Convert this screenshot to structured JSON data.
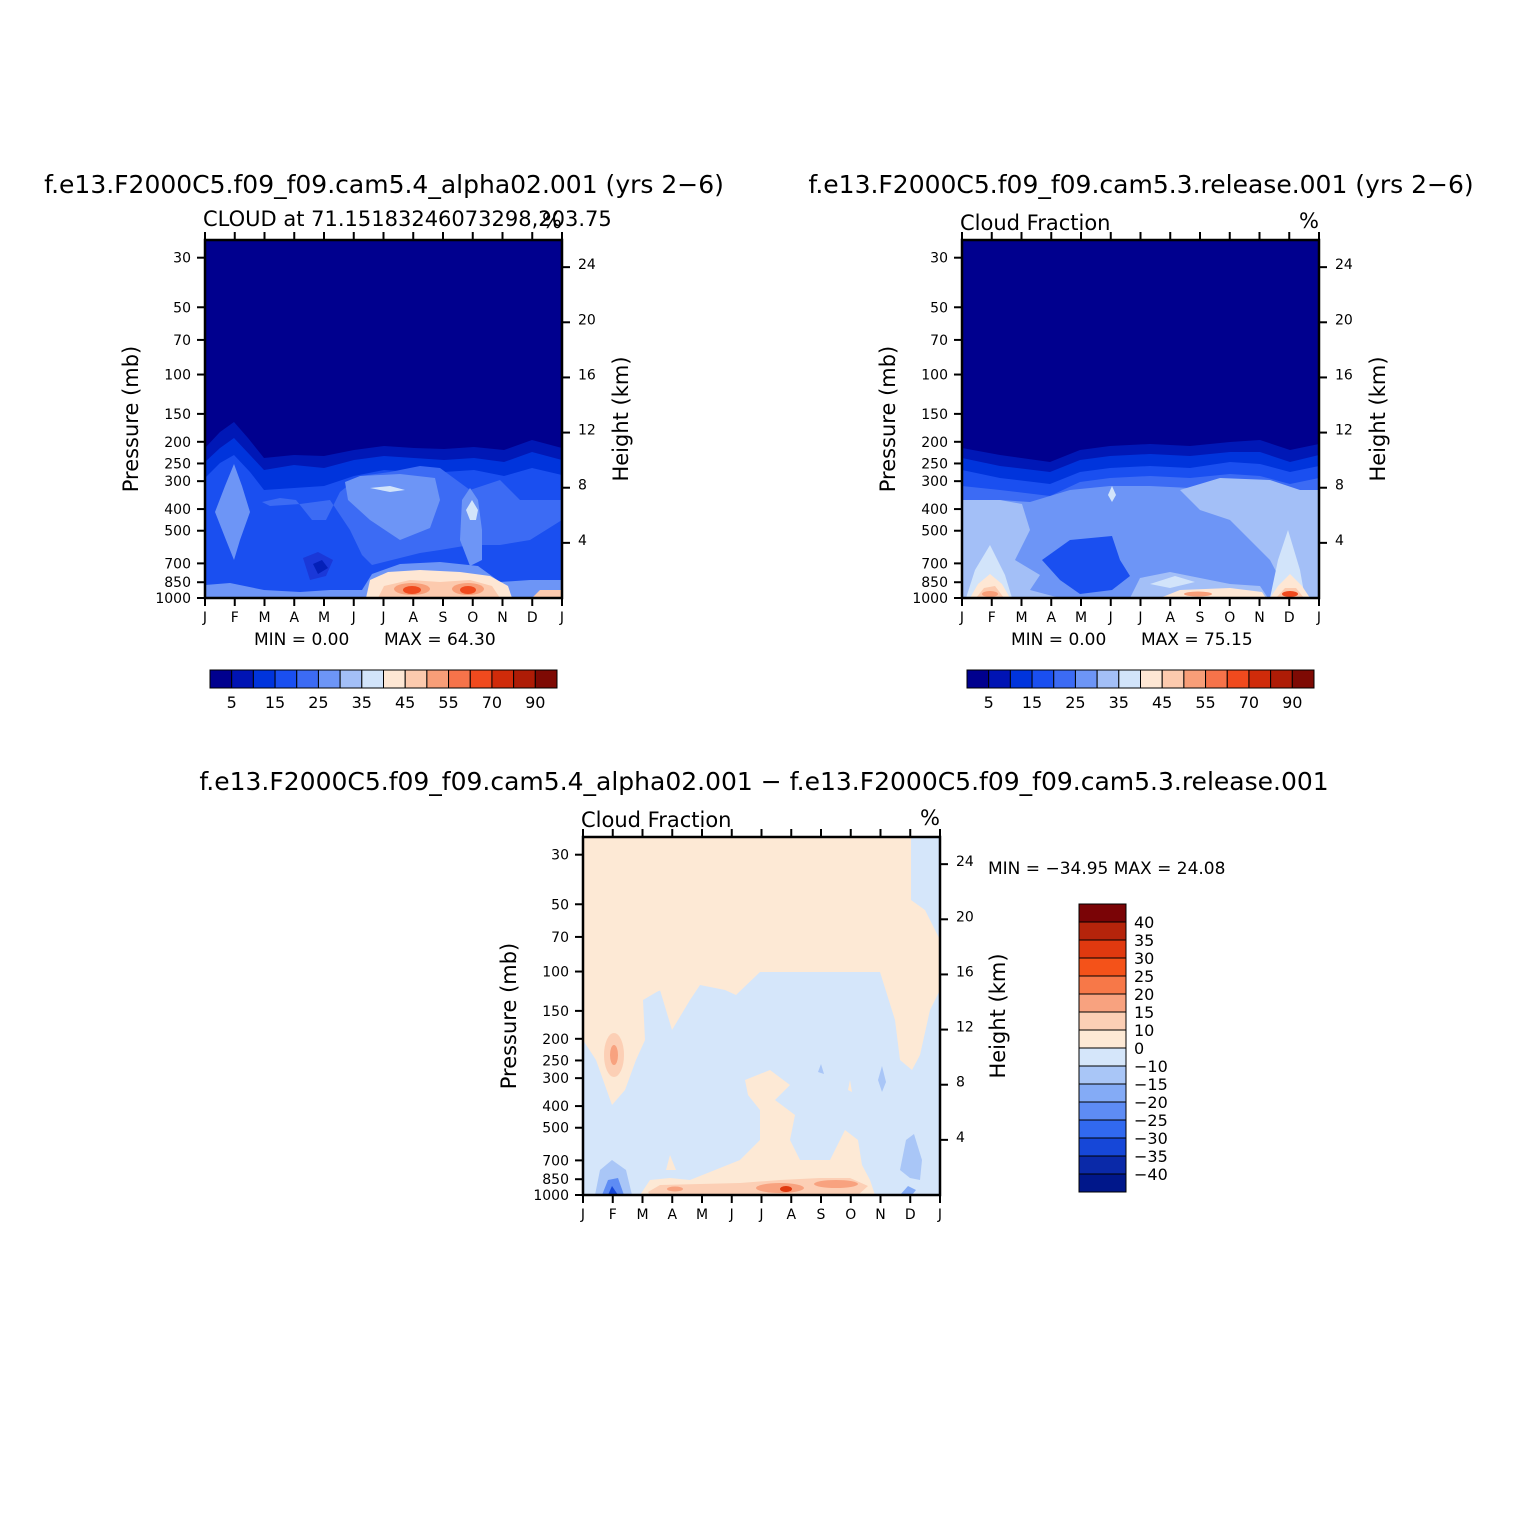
{
  "top_left_title": "f.e13.F2000C5.f09_f09.cam5.4_alpha02.001 (yrs 2−6)",
  "top_right_title": "f.e13.F2000C5.f09_f09.cam5.3.release.001 (yrs 2−6)",
  "bottom_title": "f.e13.F2000C5.f09_f09.cam5.4_alpha02.001 − f.e13.F2000C5.f09_f09.cam5.3.release.001",
  "chart_data": [
    {
      "type": "heatmap",
      "panel": "top-left",
      "subtitle": "CLOUD at 71.15183246073298,203.75",
      "units": "%",
      "xlabel": "",
      "ylabel": "Pressure (mb)",
      "ylabel_right": "Height (km)",
      "x_ticks": [
        "J",
        "F",
        "M",
        "A",
        "M",
        "J",
        "J",
        "A",
        "S",
        "O",
        "N",
        "D",
        "J"
      ],
      "y_ticks": [
        30,
        50,
        70,
        100,
        150,
        200,
        250,
        300,
        400,
        500,
        700,
        850,
        1000
      ],
      "y_right_ticks": [
        24,
        20,
        16,
        12,
        8,
        4
      ],
      "ylim": [
        1000,
        25
      ],
      "y_scale": "log",
      "min_label": "MIN =    0.00",
      "max_label": "MAX =   64.30",
      "colorbar_labels": [
        "5",
        "15",
        "25",
        "35",
        "45",
        "55",
        "70",
        "90"
      ],
      "colorbar_colors": [
        "#00008e",
        "#0014b4",
        "#0034dc",
        "#1a4ff0",
        "#3c6bf4",
        "#6d95f6",
        "#a3bff7",
        "#d2e4fa",
        "#fee7d4",
        "#fccaae",
        "#f89e78",
        "#f6734a",
        "#f04a1e",
        "#d02b0a",
        "#ae1c06",
        "#7e0a04"
      ],
      "cloud_top": [
        [
          1,
          225
        ],
        [
          1.5,
          165
        ],
        [
          2,
          205
        ],
        [
          2.2,
          245
        ],
        [
          3,
          240
        ],
        [
          4,
          245
        ],
        [
          4.5,
          240
        ],
        [
          5,
          232
        ],
        [
          6,
          228
        ],
        [
          7,
          235
        ],
        [
          8,
          232
        ],
        [
          9,
          238
        ],
        [
          10,
          240
        ],
        [
          11,
          232
        ],
        [
          12,
          220
        ]
      ],
      "low_max": 64.3
    },
    {
      "type": "heatmap",
      "panel": "top-right",
      "subtitle": "Cloud Fraction",
      "units": "%",
      "xlabel": "",
      "ylabel": "Pressure (mb)",
      "ylabel_right": "Height (km)",
      "x_ticks": [
        "J",
        "F",
        "M",
        "A",
        "M",
        "J",
        "J",
        "A",
        "S",
        "O",
        "N",
        "D",
        "J"
      ],
      "y_ticks": [
        30,
        50,
        70,
        100,
        150,
        200,
        250,
        300,
        400,
        500,
        700,
        850,
        1000
      ],
      "y_right_ticks": [
        24,
        20,
        16,
        12,
        8,
        4
      ],
      "ylim": [
        1000,
        25
      ],
      "y_scale": "log",
      "min_label": "MIN =    0.00",
      "max_label": "MAX =   75.15",
      "colorbar_labels": [
        "5",
        "15",
        "25",
        "35",
        "45",
        "55",
        "70",
        "90"
      ],
      "colorbar_colors": [
        "#00008e",
        "#0014b4",
        "#0034dc",
        "#1a4ff0",
        "#3c6bf4",
        "#6d95f6",
        "#a3bff7",
        "#d2e4fa",
        "#fee7d4",
        "#fccaae",
        "#f89e78",
        "#f6734a",
        "#f04a1e",
        "#d02b0a",
        "#ae1c06",
        "#7e0a04"
      ],
      "cloud_top": [
        [
          0,
          215
        ],
        [
          1,
          225
        ],
        [
          2,
          235
        ],
        [
          3,
          240
        ],
        [
          4,
          225
        ],
        [
          5,
          215
        ],
        [
          6,
          212
        ],
        [
          7,
          210
        ],
        [
          8,
          208
        ],
        [
          9,
          205
        ],
        [
          10,
          210
        ],
        [
          11,
          220
        ],
        [
          12,
          210
        ]
      ],
      "low_max": 75.15
    },
    {
      "type": "heatmap",
      "panel": "bottom-difference",
      "subtitle": "Cloud Fraction",
      "units": "%",
      "xlabel": "",
      "ylabel": "Pressure (mb)",
      "ylabel_right": "Height (km)",
      "x_ticks": [
        "J",
        "F",
        "M",
        "A",
        "M",
        "J",
        "J",
        "A",
        "S",
        "O",
        "N",
        "D",
        "J"
      ],
      "y_ticks": [
        30,
        50,
        70,
        100,
        150,
        200,
        250,
        300,
        400,
        500,
        700,
        850,
        1000
      ],
      "y_right_ticks": [
        24,
        20,
        16,
        12,
        8,
        4
      ],
      "ylim": [
        1000,
        25
      ],
      "y_scale": "log",
      "minmax_label": "MIN = −34.95 MAX =   24.08",
      "colorbar_labels": [
        "40",
        "35",
        "30",
        "25",
        "20",
        "15",
        "10",
        "0",
        "−10",
        "−15",
        "−20",
        "−25",
        "−30",
        "−35",
        "−40"
      ],
      "colorbar_colors": [
        "#7a0406",
        "#b5240b",
        "#e0390f",
        "#f45219",
        "#f77848",
        "#f8a27f",
        "#fccfb5",
        "#fde9d5",
        "#d5e6fa",
        "#a9c6f7",
        "#84abf6",
        "#5e8cf4",
        "#3169ef",
        "#1647d8",
        "#0a29a8",
        "#00178a"
      ]
    }
  ]
}
